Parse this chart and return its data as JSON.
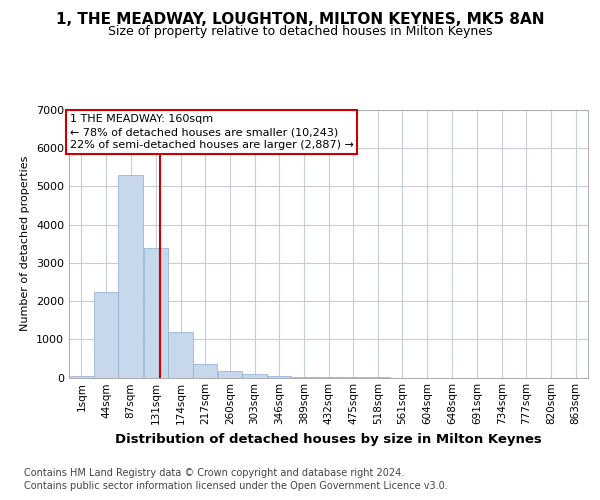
{
  "title": "1, THE MEADWAY, LOUGHTON, MILTON KEYNES, MK5 8AN",
  "subtitle": "Size of property relative to detached houses in Milton Keynes",
  "xlabel": "Distribution of detached houses by size in Milton Keynes",
  "ylabel": "Number of detached properties",
  "footer_line1": "Contains HM Land Registry data © Crown copyright and database right 2024.",
  "footer_line2": "Contains public sector information licensed under the Open Government Licence v3.0.",
  "annotation_line1": "1 THE MEADWAY: 160sqm",
  "annotation_line2": "← 78% of detached houses are smaller (10,243)",
  "annotation_line3": "22% of semi-detached houses are larger (2,887) →",
  "property_line_x": 160,
  "bar_color": "#c8d8ec",
  "bar_edgecolor": "#8aaed0",
  "line_color": "#cc0000",
  "background_color": "#ffffff",
  "grid_color": "#c5cdd8",
  "categories": [
    "1sqm",
    "44sqm",
    "87sqm",
    "131sqm",
    "174sqm",
    "217sqm",
    "260sqm",
    "303sqm",
    "346sqm",
    "389sqm",
    "432sqm",
    "475sqm",
    "518sqm",
    "561sqm",
    "604sqm",
    "648sqm",
    "691sqm",
    "734sqm",
    "777sqm",
    "820sqm",
    "863sqm"
  ],
  "bin_edges": [
    1,
    44,
    87,
    131,
    174,
    217,
    260,
    303,
    346,
    389,
    432,
    475,
    518,
    561,
    604,
    648,
    691,
    734,
    777,
    820,
    863,
    906
  ],
  "values": [
    50,
    2250,
    5300,
    3400,
    1200,
    350,
    175,
    90,
    30,
    10,
    5,
    2,
    1,
    0,
    0,
    0,
    0,
    0,
    0,
    0,
    0
  ],
  "ylim": [
    0,
    7000
  ],
  "yticks": [
    0,
    1000,
    2000,
    3000,
    4000,
    5000,
    6000,
    7000
  ],
  "title_fontsize": 11,
  "subtitle_fontsize": 9,
  "ylabel_fontsize": 8,
  "xlabel_fontsize": 9.5,
  "ytick_fontsize": 8,
  "xtick_fontsize": 7.5,
  "annotation_fontsize": 8,
  "footer_fontsize": 7
}
